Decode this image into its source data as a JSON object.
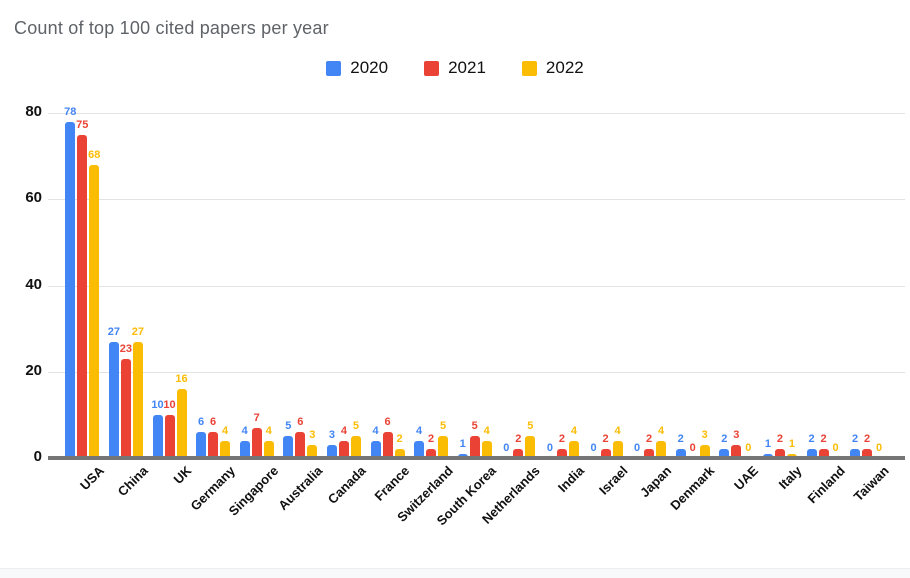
{
  "chart_data": {
    "type": "bar",
    "title": "Count of top 100 cited papers per year",
    "categories": [
      "USA",
      "China",
      "UK",
      "Germany",
      "Singapore",
      "Australia",
      "Canada",
      "France",
      "Switzerland",
      "South Korea",
      "Netherlands",
      "India",
      "Israel",
      "Japan",
      "Denmark",
      "UAE",
      "Italy",
      "Finland",
      "Taiwan"
    ],
    "series": [
      {
        "name": "2020",
        "color": "#4285F4",
        "values": [
          78,
          27,
          10,
          6,
          4,
          5,
          3,
          4,
          4,
          1,
          0,
          0,
          0,
          0,
          2,
          2,
          1,
          2,
          2
        ]
      },
      {
        "name": "2021",
        "color": "#EA4335",
        "values": [
          75,
          23,
          10,
          6,
          7,
          6,
          4,
          6,
          2,
          5,
          2,
          2,
          2,
          2,
          0,
          3,
          2,
          2,
          2
        ]
      },
      {
        "name": "2022",
        "color": "#FBBC04",
        "values": [
          68,
          27,
          16,
          4,
          4,
          3,
          5,
          2,
          5,
          4,
          5,
          4,
          4,
          4,
          3,
          0,
          1,
          0,
          0
        ]
      }
    ],
    "ylim": [
      0,
      80
    ],
    "yticks": [
      0,
      20,
      40,
      60,
      80
    ],
    "grid": true,
    "legend_position": "top",
    "xlabel": "",
    "ylabel": "",
    "data_labels_shown": true,
    "axis_colors": {
      "gridline": "#e3e3e3",
      "baseline": "#757575",
      "tick_text": "#111111",
      "title_text": "#5f6368"
    }
  }
}
